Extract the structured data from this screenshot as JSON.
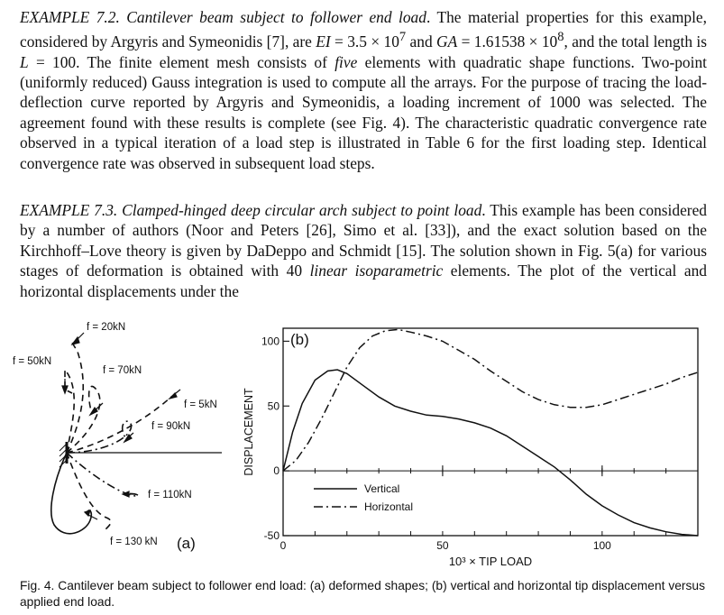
{
  "paragraphs": {
    "p1": {
      "heading": "EXAMPLE 7.2. Cantilever beam subject to follower end load",
      "t1": ". The material properties for this example, considered by Argyris and Symeonidis [7], are ",
      "ei": "EI",
      "t2": " = 3.5 × 10",
      "sup1": "7",
      "t3": " and ",
      "ga": "GA",
      "t4": " = 1.61538 × 10",
      "sup2": "8",
      "t5": ", and the total length is ",
      "l": "L",
      "t6": " = 100. The finite element mesh consists of ",
      "five": "five",
      "t7": " elements with quadratic shape functions. Two-point (uniformly reduced) Gauss integration is used to compute all the arrays. For the purpose of tracing the load-deflection curve reported by Argyris and Symeonidis, a loading increment of 1000 was selected. The agreement found with these results is complete (see Fig. 4). The characteristic quadratic convergence rate observed in a typical iteration of a load step is illustrated in Table 6 for the first loading step. Identical convergence rate was observed in subsequent load steps."
    },
    "p2": {
      "heading": "EXAMPLE 7.3. Clamped-hinged deep circular arch subject to point load",
      "t1": ". This example has been considered by a number of authors (Noor and Peters [26], Simo et al. [33]), and the exact solution based on the Kirchhoff–Love theory is given by DaDeppo and Schmidt [15]. The solution shown in Fig. 5(a) for various stages of deformation is obtained with 40 ",
      "linear": "linear isoparametric",
      "t2": " elements. The plot of the vertical and horizontal displacements under the"
    }
  },
  "figure_a": {
    "panel_label": "(a)",
    "load_labels": [
      "f = 20kN",
      "f = 50kN",
      "f = 70kN",
      "f = 5kN",
      "f = 90kN",
      "f = 110kN",
      "f = 130 kN"
    ]
  },
  "chart_data": {
    "type": "line",
    "panel_label": "(b)",
    "xlabel": "10³ × TIP LOAD",
    "ylabel": "DISPLACEMENT",
    "xlim": [
      0,
      130
    ],
    "ylim": [
      -50,
      110
    ],
    "x_ticks": [
      0,
      50,
      100
    ],
    "y_ticks": [
      -50,
      0,
      50,
      100
    ],
    "legend_position": "lower-left",
    "series": [
      {
        "name": "Vertical",
        "style": "solid",
        "points": [
          [
            0,
            0
          ],
          [
            3,
            30
          ],
          [
            6,
            52
          ],
          [
            10,
            70
          ],
          [
            14,
            77
          ],
          [
            17,
            78
          ],
          [
            20,
            75
          ],
          [
            25,
            66
          ],
          [
            30,
            57
          ],
          [
            35,
            50
          ],
          [
            40,
            46
          ],
          [
            45,
            43
          ],
          [
            50,
            42
          ],
          [
            55,
            40
          ],
          [
            60,
            37
          ],
          [
            65,
            33
          ],
          [
            70,
            27
          ],
          [
            75,
            19
          ],
          [
            80,
            11
          ],
          [
            85,
            3
          ],
          [
            90,
            -7
          ],
          [
            95,
            -18
          ],
          [
            100,
            -27
          ],
          [
            105,
            -34
          ],
          [
            110,
            -40
          ],
          [
            115,
            -44
          ],
          [
            120,
            -47
          ],
          [
            125,
            -49
          ],
          [
            130,
            -50
          ]
        ]
      },
      {
        "name": "Horizontal",
        "style": "dash-dot",
        "points": [
          [
            0,
            0
          ],
          [
            4,
            8
          ],
          [
            8,
            22
          ],
          [
            12,
            40
          ],
          [
            16,
            60
          ],
          [
            20,
            80
          ],
          [
            24,
            95
          ],
          [
            28,
            104
          ],
          [
            32,
            108
          ],
          [
            36,
            109
          ],
          [
            40,
            107
          ],
          [
            45,
            104
          ],
          [
            50,
            100
          ],
          [
            55,
            93
          ],
          [
            60,
            86
          ],
          [
            65,
            77
          ],
          [
            70,
            69
          ],
          [
            75,
            61
          ],
          [
            80,
            55
          ],
          [
            85,
            51
          ],
          [
            90,
            49
          ],
          [
            95,
            49
          ],
          [
            100,
            51
          ],
          [
            105,
            55
          ],
          [
            110,
            59
          ],
          [
            115,
            63
          ],
          [
            120,
            67
          ],
          [
            125,
            72
          ],
          [
            130,
            76
          ]
        ]
      }
    ]
  },
  "caption": {
    "label": "Fig. 4.",
    "text": "Cantilever beam subject to follower end load: (a) deformed shapes; (b) vertical and horizontal tip displacement versus applied end load."
  }
}
